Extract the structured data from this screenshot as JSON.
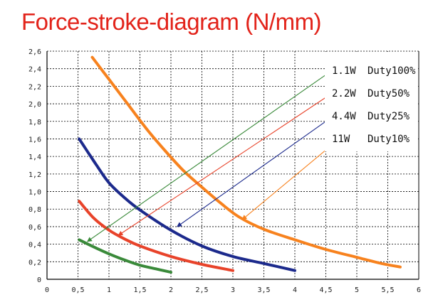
{
  "title": "Force-stroke-diagram (N/mm)",
  "chart_data": {
    "type": "line",
    "title": "Force-stroke-diagram (N/mm)",
    "xlabel": "",
    "ylabel": "",
    "xlim": [
      0,
      6
    ],
    "ylim": [
      0,
      2.6
    ],
    "xticks": [
      "0",
      "0,5",
      "1",
      "1,5",
      "2",
      "2,5",
      "3",
      "3,5",
      "4",
      "4,5",
      "5",
      "5,5",
      "6"
    ],
    "yticks": [
      "0",
      "0,2",
      "0,4",
      "0,6",
      "0,8",
      "1,0",
      "1,2",
      "1,4",
      "1,6",
      "1,8",
      "2,0",
      "2,2",
      "2,4",
      "2,6"
    ],
    "grid": true,
    "legend_position": "top-right",
    "series": [
      {
        "power": "11W",
        "duty": "Duty10%",
        "color": "#f7821e",
        "x": [
          0.73,
          1.0,
          1.3,
          1.6,
          1.9,
          2.2,
          2.5,
          2.8,
          3.1,
          3.5,
          4.0,
          4.5,
          5.0,
          5.4,
          5.7
        ],
        "y": [
          2.53,
          2.28,
          2.0,
          1.72,
          1.47,
          1.24,
          1.05,
          0.87,
          0.71,
          0.57,
          0.45,
          0.34,
          0.25,
          0.18,
          0.14
        ]
      },
      {
        "power": "4.4W",
        "duty": "Duty25%",
        "color": "#1c2a8c",
        "x": [
          0.52,
          0.8,
          1.0,
          1.25,
          1.5,
          2.0,
          2.5,
          3.0,
          3.5,
          4.0
        ],
        "y": [
          1.6,
          1.3,
          1.1,
          0.93,
          0.79,
          0.56,
          0.38,
          0.26,
          0.18,
          0.1
        ]
      },
      {
        "power": "2.2W",
        "duty": "Duty50%",
        "color": "#e8432a",
        "x": [
          0.52,
          0.75,
          1.0,
          1.25,
          1.5,
          2.0,
          2.5,
          3.0
        ],
        "y": [
          0.89,
          0.7,
          0.56,
          0.46,
          0.38,
          0.26,
          0.17,
          0.1
        ]
      },
      {
        "power": "1.1W",
        "duty": "Duty100%",
        "color": "#3a8a3a",
        "x": [
          0.52,
          0.75,
          1.0,
          1.25,
          1.5,
          1.75,
          2.0
        ],
        "y": [
          0.45,
          0.37,
          0.29,
          0.22,
          0.16,
          0.12,
          0.08
        ]
      }
    ],
    "legend": [
      {
        "power": "1.1W",
        "duty": "Duty100%",
        "color": "#3a8a3a"
      },
      {
        "power": "2.2W",
        "duty": "Duty50%",
        "color": "#e8432a"
      },
      {
        "power": "4.4W",
        "duty": "Duty25%",
        "color": "#1c2a8c"
      },
      {
        "power": "11W",
        "duty": "Duty10%",
        "color": "#f7821e"
      }
    ],
    "arrows": [
      {
        "color": "#3a8a3a",
        "from": [
          4.6,
          2.38
        ],
        "to": [
          0.65,
          0.43
        ]
      },
      {
        "color": "#e8432a",
        "from": [
          4.6,
          2.12
        ],
        "to": [
          1.15,
          0.5
        ]
      },
      {
        "color": "#1c2a8c",
        "from": [
          4.6,
          1.85
        ],
        "to": [
          2.1,
          0.6
        ]
      },
      {
        "color": "#f7821e",
        "from": [
          4.58,
          1.52
        ],
        "to": [
          3.15,
          0.68
        ]
      }
    ]
  }
}
